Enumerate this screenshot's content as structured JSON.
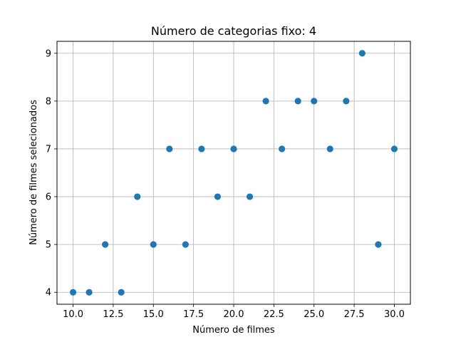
{
  "chart_data": {
    "type": "scatter",
    "title": "Número de categorias fixo: 4",
    "xlabel": "Número de filmes",
    "ylabel": "Número de filmes selecionados",
    "xlim": [
      9.0,
      31.0
    ],
    "ylim": [
      3.75,
      9.25
    ],
    "xticks": [
      10.0,
      12.5,
      15.0,
      17.5,
      20.0,
      22.5,
      25.0,
      27.5,
      30.0
    ],
    "xtick_labels": [
      "10.0",
      "12.5",
      "15.0",
      "17.5",
      "20.0",
      "22.5",
      "25.0",
      "27.5",
      "30.0"
    ],
    "yticks": [
      4,
      5,
      6,
      7,
      8,
      9
    ],
    "ytick_labels": [
      "4",
      "5",
      "6",
      "7",
      "8",
      "9"
    ],
    "grid": true,
    "marker_color": "#1f77b4",
    "x": [
      10,
      11,
      12,
      13,
      14,
      15,
      16,
      17,
      18,
      19,
      20,
      21,
      22,
      23,
      24,
      25,
      26,
      27,
      28,
      29,
      30
    ],
    "y": [
      4,
      4,
      5,
      4,
      6,
      5,
      7,
      5,
      7,
      6,
      7,
      6,
      8,
      7,
      8,
      8,
      7,
      8,
      9,
      5,
      7
    ]
  }
}
